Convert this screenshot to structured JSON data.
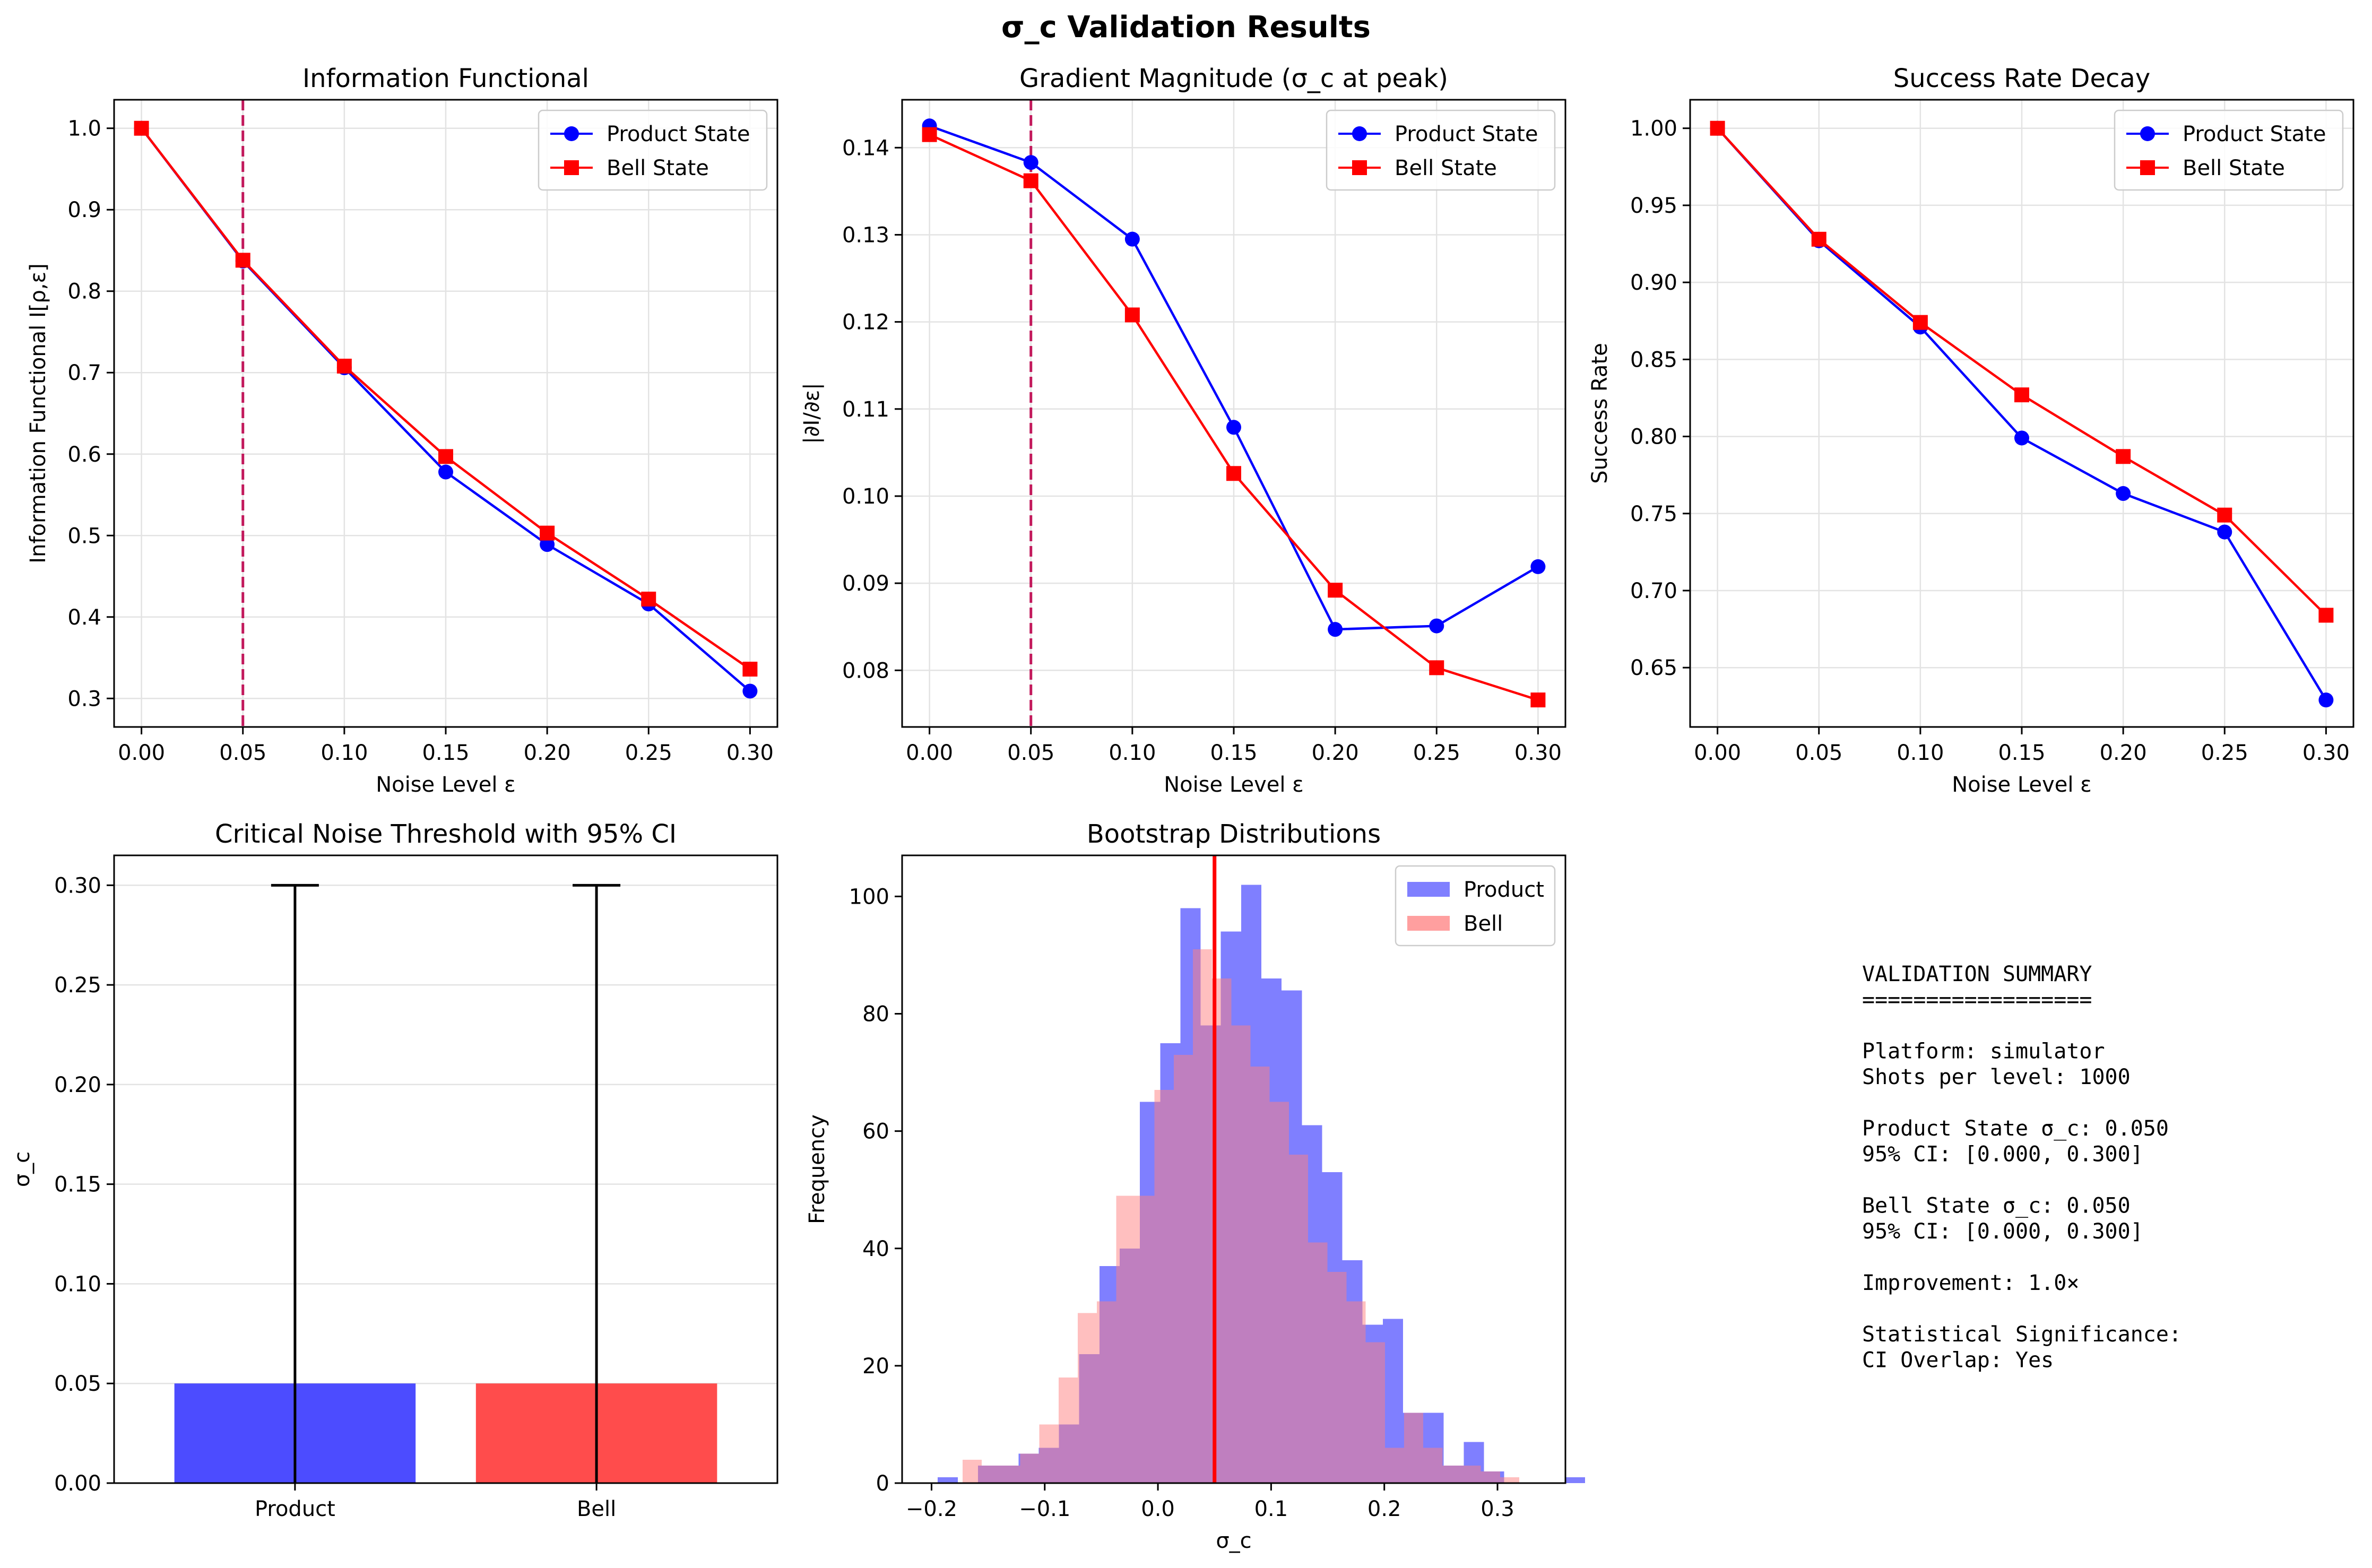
{
  "figure": {
    "title": "σ_c Validation Results"
  },
  "colors": {
    "product": "#0000ff",
    "bell": "#ff0000",
    "threshold": "#c2185b",
    "grid": "#e3e3e3",
    "bar_product": "#4c4cff",
    "bar_bell": "#ff4c4c",
    "hist_product": "#7f7fff",
    "hist_bell": "#ff7f7f",
    "hist_overlap": "#bf3f7f",
    "vline": "#ff0000"
  },
  "chart_data": [
    {
      "id": "info",
      "type": "line",
      "title": "Information Functional",
      "xlabel": "Noise Level ε",
      "ylabel": "Information Functional I[ρ,ε]",
      "xlim": [
        -0.0135,
        0.3135
      ],
      "ylim": [
        0.265,
        1.035
      ],
      "xticks": [
        0.0,
        0.05,
        0.1,
        0.15,
        0.2,
        0.25,
        0.3
      ],
      "xtick_labels": [
        "0.00",
        "0.05",
        "0.10",
        "0.15",
        "0.20",
        "0.25",
        "0.30"
      ],
      "yticks": [
        0.3,
        0.4,
        0.5,
        0.6,
        0.7,
        0.8,
        0.9,
        1.0
      ],
      "ytick_labels": [
        "0.3",
        "0.4",
        "0.5",
        "0.6",
        "0.7",
        "0.8",
        "0.9",
        "1.0"
      ],
      "threshold_x": 0.05,
      "grid": true,
      "legend": "upper right",
      "x": [
        0.0,
        0.05,
        0.1,
        0.15,
        0.2,
        0.25,
        0.3
      ],
      "series": [
        {
          "name": "Product State",
          "marker": "circle",
          "values": [
            1.0,
            0.837,
            0.706,
            0.578,
            0.489,
            0.416,
            0.309
          ]
        },
        {
          "name": "Bell State",
          "marker": "square",
          "values": [
            1.0,
            0.838,
            0.708,
            0.597,
            0.503,
            0.422,
            0.336
          ]
        }
      ]
    },
    {
      "id": "grad",
      "type": "line",
      "title": "Gradient Magnitude (σ_c at peak)",
      "xlabel": "Noise Level ε",
      "ylabel": "|∂I/∂ε|",
      "xlim": [
        -0.0135,
        0.3135
      ],
      "ylim": [
        0.0735,
        0.1455
      ],
      "xticks": [
        0.0,
        0.05,
        0.1,
        0.15,
        0.2,
        0.25,
        0.3
      ],
      "xtick_labels": [
        "0.00",
        "0.05",
        "0.10",
        "0.15",
        "0.20",
        "0.25",
        "0.30"
      ],
      "yticks": [
        0.08,
        0.09,
        0.1,
        0.11,
        0.12,
        0.13,
        0.14
      ],
      "ytick_labels": [
        "0.08",
        "0.09",
        "0.10",
        "0.11",
        "0.12",
        "0.13",
        "0.14"
      ],
      "threshold_x": 0.05,
      "grid": true,
      "legend": "upper right",
      "x": [
        0.0,
        0.05,
        0.1,
        0.15,
        0.2,
        0.25,
        0.3
      ],
      "series": [
        {
          "name": "Product State",
          "marker": "circle",
          "values": [
            0.1425,
            0.1383,
            0.1295,
            0.1079,
            0.0847,
            0.0851,
            0.0919
          ]
        },
        {
          "name": "Bell State",
          "marker": "square",
          "values": [
            0.1415,
            0.1362,
            0.1208,
            0.1026,
            0.0892,
            0.0803,
            0.0766
          ]
        }
      ]
    },
    {
      "id": "succ",
      "type": "line",
      "title": "Success Rate Decay",
      "xlabel": "Noise Level ε",
      "ylabel": "Success Rate",
      "xlim": [
        -0.0135,
        0.3135
      ],
      "ylim": [
        0.6115,
        1.0185
      ],
      "xticks": [
        0.0,
        0.05,
        0.1,
        0.15,
        0.2,
        0.25,
        0.3
      ],
      "xtick_labels": [
        "0.00",
        "0.05",
        "0.10",
        "0.15",
        "0.20",
        "0.25",
        "0.30"
      ],
      "yticks": [
        0.65,
        0.7,
        0.75,
        0.8,
        0.85,
        0.9,
        0.95,
        1.0
      ],
      "ytick_labels": [
        "0.65",
        "0.70",
        "0.75",
        "0.80",
        "0.85",
        "0.90",
        "0.95",
        "1.00"
      ],
      "grid": true,
      "legend": "upper right",
      "x": [
        0.0,
        0.05,
        0.1,
        0.15,
        0.2,
        0.25,
        0.3
      ],
      "series": [
        {
          "name": "Product State",
          "marker": "circle",
          "values": [
            1.0,
            0.927,
            0.871,
            0.799,
            0.763,
            0.738,
            0.629
          ]
        },
        {
          "name": "Bell State",
          "marker": "square",
          "values": [
            1.0,
            0.928,
            0.874,
            0.827,
            0.787,
            0.749,
            0.684
          ]
        }
      ]
    },
    {
      "id": "thresh",
      "type": "bar",
      "title": "Critical Noise Threshold with 95% CI",
      "ylabel": "σ_c",
      "categories": [
        "Product",
        "Bell"
      ],
      "values": [
        0.05,
        0.05
      ],
      "ci": [
        [
          0.0,
          0.3
        ],
        [
          0.0,
          0.3
        ]
      ],
      "ylim": [
        0.0,
        0.315
      ],
      "yticks": [
        0.0,
        0.05,
        0.1,
        0.15,
        0.2,
        0.25,
        0.3
      ],
      "ytick_labels": [
        "0.00",
        "0.05",
        "0.10",
        "0.15",
        "0.20",
        "0.25",
        "0.30"
      ],
      "grid": true
    },
    {
      "id": "boot",
      "type": "histogram",
      "title": "Bootstrap Distributions",
      "xlabel": "σ_c",
      "ylabel": "Frequency",
      "xlim": [
        -0.226,
        0.36
      ],
      "ylim": [
        0,
        107
      ],
      "xticks": [
        -0.2,
        -0.1,
        0.0,
        0.1,
        0.2,
        0.3
      ],
      "xtick_labels": [
        "−0.2",
        "−0.1",
        "0.0",
        "0.1",
        "0.2",
        "0.3"
      ],
      "yticks": [
        0,
        20,
        40,
        60,
        80,
        100
      ],
      "ytick_labels": [
        "0",
        "20",
        "40",
        "60",
        "80",
        "100"
      ],
      "vline_x": 0.05,
      "legend": "upper right",
      "series": [
        {
          "name": "Product",
          "bin_start": -0.1947,
          "bin_width": 0.01788,
          "counts": [
            1,
            0,
            3,
            3,
            5,
            6,
            10,
            22,
            37,
            40,
            65,
            75,
            98,
            78,
            94,
            102,
            86,
            84,
            61,
            53,
            38,
            27,
            28,
            12,
            12,
            3,
            7,
            2,
            0,
            0,
            0,
            1
          ]
        },
        {
          "name": "Bell",
          "bin_start": -0.1726,
          "bin_width": 0.01696,
          "counts": [
            4,
            3,
            3,
            5,
            10,
            18,
            29,
            31,
            49,
            49,
            67,
            73,
            91,
            86,
            78,
            71,
            65,
            56,
            41,
            36,
            31,
            24,
            6,
            12,
            6,
            3,
            3,
            2,
            1
          ]
        }
      ]
    }
  ],
  "summary": {
    "lines": [
      "VALIDATION SUMMARY",
      "==================",
      "",
      "Platform: simulator",
      "Shots per level: 1000",
      "",
      "Product State σ_c: 0.050",
      "95% CI: [0.000, 0.300]",
      "",
      "Bell State σ_c: 0.050",
      "95% CI: [0.000, 0.300]",
      "",
      "Improvement: 1.0×",
      "",
      "Statistical Significance:",
      "CI Overlap: Yes"
    ]
  }
}
